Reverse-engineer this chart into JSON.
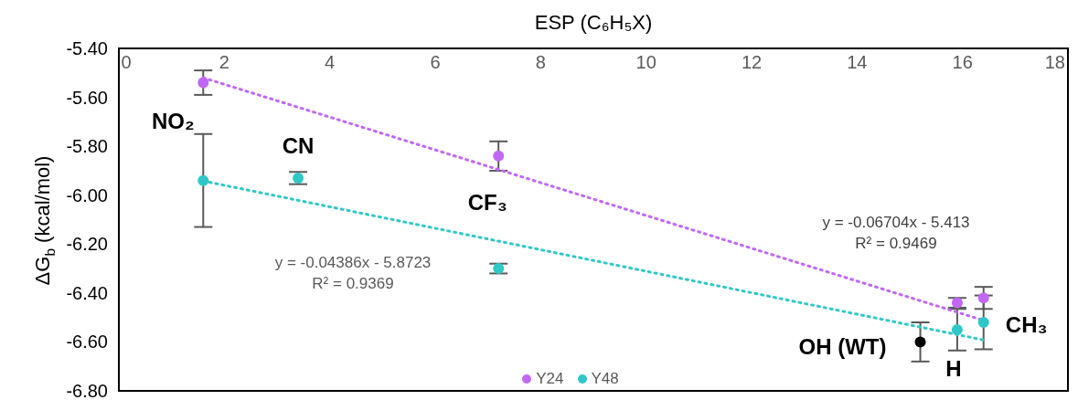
{
  "chart_data": {
    "type": "scatter",
    "xlabel": "ESP (C₆H₅X)",
    "ylabel": "ΔG$_{b}$ (kcal/mol)",
    "xlim": [
      0,
      18
    ],
    "xticks": [
      0,
      2,
      4,
      6,
      8,
      10,
      12,
      14,
      16,
      18
    ],
    "ylim": [
      -6.8,
      -5.4
    ],
    "yticks": [
      {
        "value": -6.8,
        "label": "-6.80"
      },
      {
        "value": -6.6,
        "label": "-6.60"
      },
      {
        "value": -6.4,
        "label": "-6.40"
      },
      {
        "value": -6.2,
        "label": "-6.20"
      },
      {
        "value": -6.0,
        "label": "-6.00"
      },
      {
        "value": -5.8,
        "label": "-5.80"
      },
      {
        "value": -5.6,
        "label": "-5.60"
      },
      {
        "value": -5.4,
        "label": "-5.40"
      }
    ],
    "legend": "bottom",
    "marker": "circle",
    "series": [
      {
        "type": "line",
        "color": "#c267f5",
        "line_style": "dotted",
        "marker": "none",
        "x": [
          1.6,
          16.4
        ],
        "values": [
          -5.52,
          -6.512
        ]
      },
      {
        "type": "line",
        "color": "#2fc8c8",
        "line_style": "dotted",
        "marker": "none",
        "x": [
          1.6,
          16.4
        ],
        "values": [
          -5.942,
          -6.592
        ]
      },
      {
        "name": "Y24",
        "color": "#c267f5",
        "x": [
          1.6,
          7.2,
          15.9,
          16.4
        ],
        "values": [
          -5.54,
          -5.84,
          -6.44,
          -6.42
        ],
        "errors": [
          0.05,
          0.06,
          0.02,
          0.045
        ]
      },
      {
        "name": "Y48",
        "color": "#2fc8c8",
        "x": [
          1.6,
          3.4,
          7.2,
          15.9,
          16.4
        ],
        "values": [
          -5.94,
          -5.93,
          -6.3,
          -6.55,
          -6.52
        ],
        "errors": [
          0.19,
          0.025,
          0.02,
          0.085,
          0.11
        ]
      },
      {
        "color": "#000000",
        "x": [
          15.2
        ],
        "values": [
          -6.6
        ],
        "errors": [
          0.08
        ]
      }
    ],
    "annotations": [
      {
        "text": "NO₂",
        "x": 1.6,
        "y": -5.94
      },
      {
        "text": "CN",
        "x": 3.4,
        "y": -5.93
      },
      {
        "text": "CF₃",
        "x": 7.2,
        "y": -5.84
      },
      {
        "text": "OH (WT)",
        "x": 15.2,
        "y": -6.6
      },
      {
        "text": "H",
        "x": 15.9,
        "y": -6.55
      },
      {
        "text": "CH₃",
        "x": 16.4,
        "y": -6.52
      },
      "y = -0.04386x - 5.8723\nR² = 0.9369",
      "y = -0.06704x - 5.413\nR² = 0.9469"
    ]
  }
}
